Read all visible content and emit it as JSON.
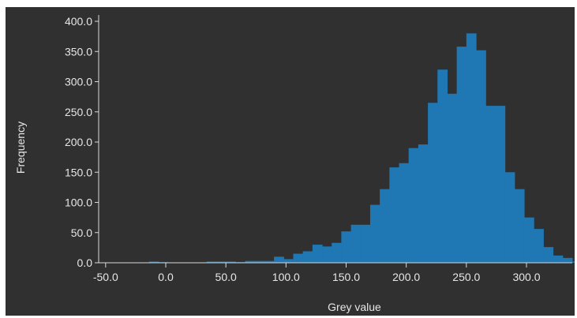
{
  "chart_data": {
    "type": "bar",
    "title": "",
    "xlabel": "Grey value",
    "ylabel": "Frequency",
    "xlim": [
      -60,
      345
    ],
    "ylim": [
      0,
      420
    ],
    "grid": false,
    "bar_color": "#1f77b4",
    "background_color": "#303030",
    "axis_color": "#d9d9d9",
    "bin_width": 8,
    "x_ticks": [
      -50,
      0,
      50,
      100,
      150,
      200,
      250,
      300
    ],
    "x_tick_labels": [
      "-50.0",
      "0.0",
      "50.0",
      "100.0",
      "150.0",
      "200.0",
      "250.0",
      "300.0"
    ],
    "y_ticks": [
      0,
      50,
      100,
      150,
      200,
      250,
      300,
      350,
      400
    ],
    "y_tick_labels": [
      "0.0",
      "50.0",
      "100.0",
      "150.0",
      "200.0",
      "250.0",
      "300.0",
      "350.0",
      "400.0"
    ],
    "bins": [
      {
        "x": -10,
        "y": 2
      },
      {
        "x": -2,
        "y": 1
      },
      {
        "x": 38,
        "y": 2
      },
      {
        "x": 46,
        "y": 2
      },
      {
        "x": 54,
        "y": 2
      },
      {
        "x": 62,
        "y": 1
      },
      {
        "x": 70,
        "y": 3
      },
      {
        "x": 78,
        "y": 3
      },
      {
        "x": 86,
        "y": 3
      },
      {
        "x": 94,
        "y": 10
      },
      {
        "x": 102,
        "y": 6
      },
      {
        "x": 110,
        "y": 15
      },
      {
        "x": 118,
        "y": 19
      },
      {
        "x": 126,
        "y": 30
      },
      {
        "x": 134,
        "y": 27
      },
      {
        "x": 142,
        "y": 33
      },
      {
        "x": 150,
        "y": 52
      },
      {
        "x": 158,
        "y": 63
      },
      {
        "x": 166,
        "y": 63
      },
      {
        "x": 174,
        "y": 96
      },
      {
        "x": 182,
        "y": 122
      },
      {
        "x": 190,
        "y": 158
      },
      {
        "x": 198,
        "y": 165
      },
      {
        "x": 206,
        "y": 190
      },
      {
        "x": 214,
        "y": 196
      },
      {
        "x": 222,
        "y": 265
      },
      {
        "x": 230,
        "y": 320
      },
      {
        "x": 238,
        "y": 280
      },
      {
        "x": 246,
        "y": 358
      },
      {
        "x": 254,
        "y": 380
      },
      {
        "x": 262,
        "y": 352
      },
      {
        "x": 270,
        "y": 260
      },
      {
        "x": 278,
        "y": 260
      },
      {
        "x": 286,
        "y": 150
      },
      {
        "x": 294,
        "y": 122
      },
      {
        "x": 302,
        "y": 75
      },
      {
        "x": 310,
        "y": 56
      },
      {
        "x": 318,
        "y": 26
      },
      {
        "x": 326,
        "y": 12
      },
      {
        "x": 334,
        "y": 8
      },
      {
        "x": 342,
        "y": 2
      }
    ]
  }
}
